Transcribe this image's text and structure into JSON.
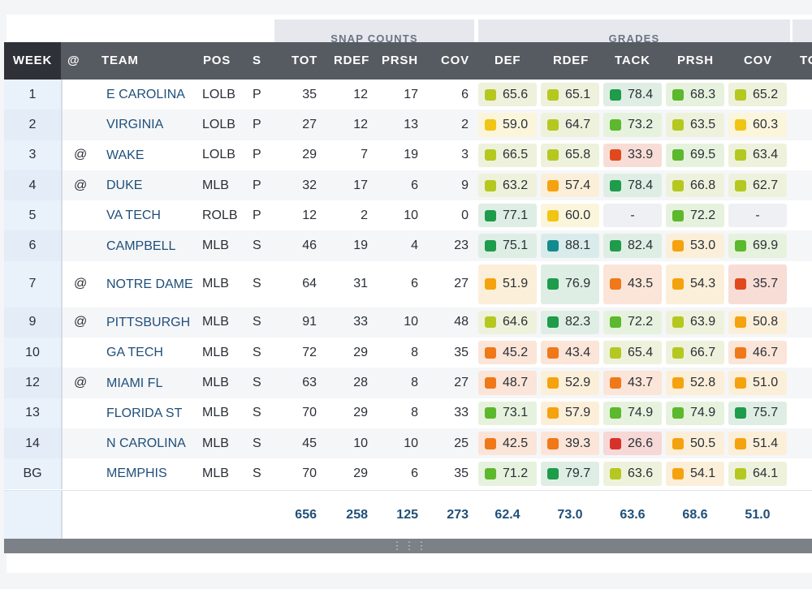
{
  "groups": {
    "snap": "SNAP COUNTS",
    "grades": "GRADES"
  },
  "columns": {
    "week": "WEEK",
    "at": "@",
    "team": "TEAM",
    "pos": "POS",
    "s": "S",
    "tot": "TOT",
    "rdef": "RDEF",
    "prsh": "PRSH",
    "cov": "COV",
    "g_def": "DEF",
    "g_rdef": "RDEF",
    "g_tack": "TACK",
    "g_prsh": "PRSH",
    "g_cov": "COV",
    "extra": "TO"
  },
  "grade_colors": {
    "dark_green": "#1e9b4b",
    "green": "#5cb82c",
    "yellow_green": "#b5c820",
    "yellow": "#f0c514",
    "orange": "#f5a20f",
    "dark_orange": "#f07818",
    "red": "#e0491d",
    "deep_red": "#d6322a",
    "teal": "#138b8c"
  },
  "grade_backgrounds": {
    "dark_green": "#dfeee4",
    "green": "#e6f2de",
    "yellow_green": "#eef2dc",
    "yellow": "#fbf5dc",
    "orange": "#fcefd9",
    "dark_orange": "#fbe5d8",
    "red": "#f8ddd7",
    "deep_red": "#f6d8d7",
    "teal": "#d9eceb"
  },
  "rows": [
    {
      "week": "1",
      "at": "",
      "team": "E CAROLINA",
      "pos": "LOLB",
      "s": "P",
      "tot": "35",
      "rdef": "12",
      "prsh": "17",
      "cov": "6",
      "grades": [
        [
          "65.6",
          "yellow_green"
        ],
        [
          "65.1",
          "yellow_green"
        ],
        [
          "78.4",
          "dark_green"
        ],
        [
          "68.3",
          "green"
        ],
        [
          "65.2",
          "yellow_green"
        ]
      ]
    },
    {
      "week": "2",
      "at": "",
      "team": "VIRGINIA",
      "pos": "LOLB",
      "s": "P",
      "tot": "27",
      "rdef": "12",
      "prsh": "13",
      "cov": "2",
      "grades": [
        [
          "59.0",
          "yellow"
        ],
        [
          "64.7",
          "yellow_green"
        ],
        [
          "73.2",
          "green"
        ],
        [
          "63.5",
          "yellow_green"
        ],
        [
          "60.3",
          "yellow"
        ]
      ]
    },
    {
      "week": "3",
      "at": "@",
      "team": "WAKE",
      "pos": "LOLB",
      "s": "P",
      "tot": "29",
      "rdef": "7",
      "prsh": "19",
      "cov": "3",
      "grades": [
        [
          "66.5",
          "yellow_green"
        ],
        [
          "65.8",
          "yellow_green"
        ],
        [
          "33.9",
          "red"
        ],
        [
          "69.5",
          "green"
        ],
        [
          "63.4",
          "yellow_green"
        ]
      ]
    },
    {
      "week": "4",
      "at": "@",
      "team": "DUKE",
      "pos": "MLB",
      "s": "P",
      "tot": "32",
      "rdef": "17",
      "prsh": "6",
      "cov": "9",
      "grades": [
        [
          "63.2",
          "yellow_green"
        ],
        [
          "57.4",
          "orange"
        ],
        [
          "78.4",
          "dark_green"
        ],
        [
          "66.8",
          "yellow_green"
        ],
        [
          "62.7",
          "yellow_green"
        ]
      ]
    },
    {
      "week": "5",
      "at": "",
      "team": "VA TECH",
      "pos": "ROLB",
      "s": "P",
      "tot": "12",
      "rdef": "2",
      "prsh": "10",
      "cov": "0",
      "grades": [
        [
          "77.1",
          "dark_green"
        ],
        [
          "60.0",
          "yellow"
        ],
        [
          "-",
          ""
        ],
        [
          "72.2",
          "green"
        ],
        [
          "-",
          ""
        ]
      ]
    },
    {
      "week": "6",
      "at": "",
      "team": "CAMPBELL",
      "pos": "MLB",
      "s": "S",
      "tot": "46",
      "rdef": "19",
      "prsh": "4",
      "cov": "23",
      "grades": [
        [
          "75.1",
          "dark_green"
        ],
        [
          "88.1",
          "teal"
        ],
        [
          "82.4",
          "dark_green"
        ],
        [
          "53.0",
          "orange"
        ],
        [
          "69.9",
          "green"
        ]
      ]
    },
    {
      "week": "7",
      "at": "@",
      "team": "NOTRE DAME",
      "pos": "MLB",
      "s": "S",
      "tot": "64",
      "rdef": "31",
      "prsh": "6",
      "cov": "27",
      "tall": true,
      "grades": [
        [
          "51.9",
          "orange"
        ],
        [
          "76.9",
          "dark_green"
        ],
        [
          "43.5",
          "dark_orange"
        ],
        [
          "54.3",
          "orange"
        ],
        [
          "35.7",
          "red"
        ]
      ]
    },
    {
      "week": "9",
      "at": "@",
      "team": "PITTSBURGH",
      "pos": "MLB",
      "s": "S",
      "tot": "91",
      "rdef": "33",
      "prsh": "10",
      "cov": "48",
      "grades": [
        [
          "64.6",
          "yellow_green"
        ],
        [
          "82.3",
          "dark_green"
        ],
        [
          "72.2",
          "green"
        ],
        [
          "63.9",
          "yellow_green"
        ],
        [
          "50.8",
          "orange"
        ]
      ]
    },
    {
      "week": "10",
      "at": "",
      "team": "GA TECH",
      "pos": "MLB",
      "s": "S",
      "tot": "72",
      "rdef": "29",
      "prsh": "8",
      "cov": "35",
      "grades": [
        [
          "45.2",
          "dark_orange"
        ],
        [
          "43.4",
          "dark_orange"
        ],
        [
          "65.4",
          "yellow_green"
        ],
        [
          "66.7",
          "yellow_green"
        ],
        [
          "46.7",
          "dark_orange"
        ]
      ]
    },
    {
      "week": "12",
      "at": "@",
      "team": "MIAMI FL",
      "pos": "MLB",
      "s": "S",
      "tot": "63",
      "rdef": "28",
      "prsh": "8",
      "cov": "27",
      "grades": [
        [
          "48.7",
          "dark_orange"
        ],
        [
          "52.9",
          "orange"
        ],
        [
          "43.7",
          "dark_orange"
        ],
        [
          "52.8",
          "orange"
        ],
        [
          "51.0",
          "orange"
        ]
      ]
    },
    {
      "week": "13",
      "at": "",
      "team": "FLORIDA ST",
      "pos": "MLB",
      "s": "S",
      "tot": "70",
      "rdef": "29",
      "prsh": "8",
      "cov": "33",
      "grades": [
        [
          "73.1",
          "green"
        ],
        [
          "57.9",
          "orange"
        ],
        [
          "74.9",
          "green"
        ],
        [
          "74.9",
          "green"
        ],
        [
          "75.7",
          "dark_green"
        ]
      ]
    },
    {
      "week": "14",
      "at": "",
      "team": "N CAROLINA",
      "pos": "MLB",
      "s": "S",
      "tot": "45",
      "rdef": "10",
      "prsh": "10",
      "cov": "25",
      "grades": [
        [
          "42.5",
          "dark_orange"
        ],
        [
          "39.3",
          "dark_orange"
        ],
        [
          "26.6",
          "deep_red"
        ],
        [
          "50.5",
          "orange"
        ],
        [
          "51.4",
          "orange"
        ]
      ]
    },
    {
      "week": "BG",
      "at": "",
      "team": "MEMPHIS",
      "pos": "MLB",
      "s": "S",
      "tot": "70",
      "rdef": "29",
      "prsh": "6",
      "cov": "35",
      "grades": [
        [
          "71.2",
          "green"
        ],
        [
          "79.7",
          "dark_green"
        ],
        [
          "63.6",
          "yellow_green"
        ],
        [
          "54.1",
          "orange"
        ],
        [
          "64.1",
          "yellow_green"
        ]
      ]
    }
  ],
  "totals": {
    "tot": "656",
    "rdef": "258",
    "prsh": "125",
    "cov": "273",
    "g_def": "62.4",
    "g_rdef": "73.0",
    "g_tack": "63.6",
    "g_prsh": "68.6",
    "g_cov": "51.0"
  },
  "scrollbar": {
    "handle_icon": "grip-dots-icon",
    "glyph": "⋮⋮⋮"
  }
}
